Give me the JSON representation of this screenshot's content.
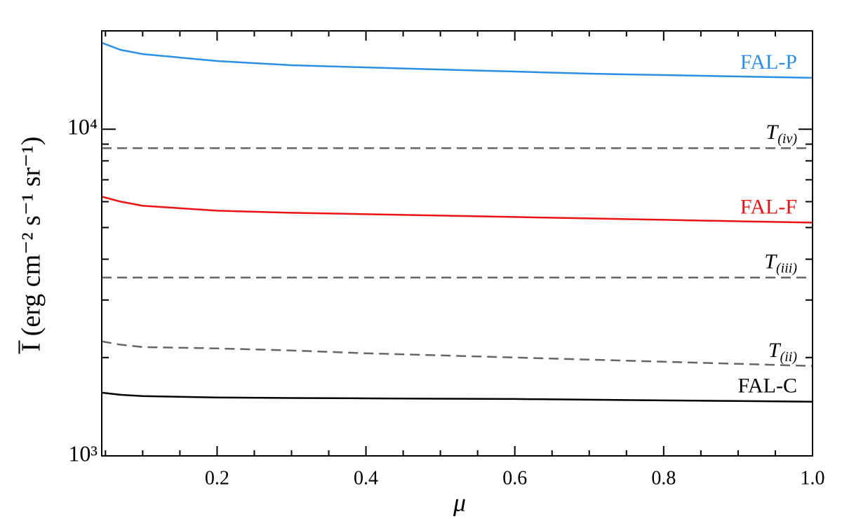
{
  "chart_data": {
    "type": "line",
    "xlabel": "μ",
    "ylabel": "I̅ (erg cm⁻² s⁻¹ sr⁻¹)",
    "x": [
      0.045,
      0.07,
      0.1,
      0.2,
      0.3,
      0.4,
      0.5,
      0.6,
      0.7,
      0.8,
      0.9,
      1.0
    ],
    "series": [
      {
        "name": "FAL-P",
        "color": "#2b8fe8",
        "dashed": false,
        "values": [
          18390,
          17500,
          16980,
          16170,
          15700,
          15460,
          15230,
          15010,
          14790,
          14650,
          14500,
          14360
        ]
      },
      {
        "name": "T(iv)",
        "color": "#666666",
        "dashed": true,
        "values": [
          8750,
          8750,
          8750,
          8750,
          8750,
          8750,
          8750,
          8750,
          8750,
          8750,
          8750,
          8750
        ]
      },
      {
        "name": "FAL-F",
        "color": "#ee1111",
        "dashed": false,
        "values": [
          6216,
          6004,
          5830,
          5630,
          5547,
          5495,
          5440,
          5385,
          5332,
          5281,
          5225,
          5176
        ]
      },
      {
        "name": "T(iii)",
        "color": "#666666",
        "dashed": true,
        "values": [
          3515,
          3515,
          3515,
          3515,
          3515,
          3515,
          3515,
          3515,
          3515,
          3515,
          3515,
          3515
        ]
      },
      {
        "name": "T(ii)",
        "color": "#666666",
        "dashed": true,
        "values": [
          2241,
          2190,
          2153,
          2133,
          2102,
          2061,
          2031,
          2000,
          1971,
          1942,
          1913,
          1884
        ]
      },
      {
        "name": "FAL-C",
        "color": "#000000",
        "dashed": false,
        "values": [
          1561,
          1538,
          1524,
          1509,
          1504,
          1500,
          1496,
          1493,
          1486,
          1479,
          1472,
          1465
        ]
      }
    ],
    "xlim": [
      0.045,
      1.0
    ],
    "xticks": [
      0.2,
      0.4,
      0.6,
      0.8,
      {
        "value": 1.0,
        "label": "1.0"
      }
    ],
    "xminorticks": [
      0.05,
      0.1,
      0.15,
      0.25,
      0.3,
      0.35,
      0.45,
      0.5,
      0.55,
      0.65,
      0.7,
      0.75,
      0.85,
      0.9,
      0.95
    ],
    "ylim": [
      1000,
      20000
    ],
    "ylog": true,
    "yticks": [
      {
        "value": 1000,
        "label": "10³"
      },
      {
        "value": 10000,
        "label": "10⁴"
      }
    ],
    "yminorticks": [
      2000,
      3000,
      4000,
      5000,
      6000,
      7000,
      8000,
      9000,
      20000
    ]
  }
}
